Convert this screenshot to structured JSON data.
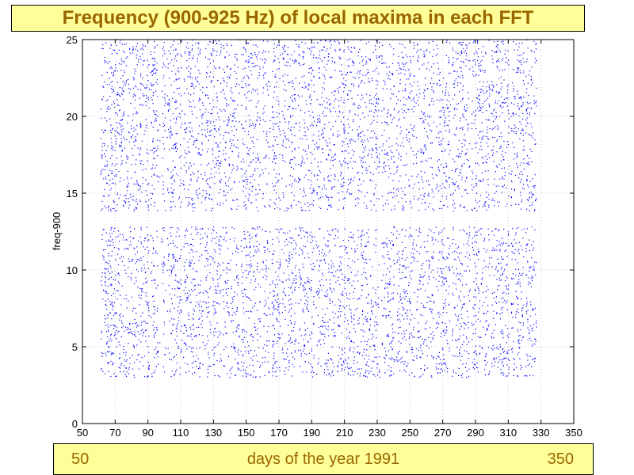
{
  "header": {
    "title": "Frequency (900-925 Hz) of local maxima in each FFT"
  },
  "footer": {
    "left": "50",
    "center": "days of the year 1991",
    "right": "350"
  },
  "colors": {
    "title_background": "#ffff99",
    "title_text": "#996600",
    "points": "#0000ff"
  },
  "chart_data": {
    "type": "scatter",
    "title": "Frequency (900-925 Hz) of local maxima in each FFT",
    "xlabel": "",
    "ylabel": "freq-900",
    "xlim": [
      50,
      350
    ],
    "ylim": [
      0,
      25
    ],
    "xticks": [
      50,
      70,
      90,
      110,
      130,
      150,
      170,
      190,
      210,
      230,
      250,
      270,
      290,
      310,
      330,
      350
    ],
    "yticks": [
      0,
      5,
      10,
      15,
      20,
      25
    ],
    "grid": true,
    "series": [
      {
        "marker_color": "#0000ff",
        "x_range": [
          61,
          327
        ],
        "y_range": [
          3,
          25
        ],
        "empty_y_bands": [
          [
            12.8,
            13.8
          ]
        ],
        "empty_x_gaps": [
          91,
          96.5,
          97.5,
          101,
          111,
          124,
          135,
          146,
          159,
          165,
          171,
          181,
          192,
          205,
          217,
          232,
          241,
          253,
          265,
          275,
          287,
          299,
          311,
          320
        ],
        "dense_y_bands": [
          [
            3,
            12.7
          ],
          [
            13.8,
            25
          ]
        ]
      }
    ]
  }
}
